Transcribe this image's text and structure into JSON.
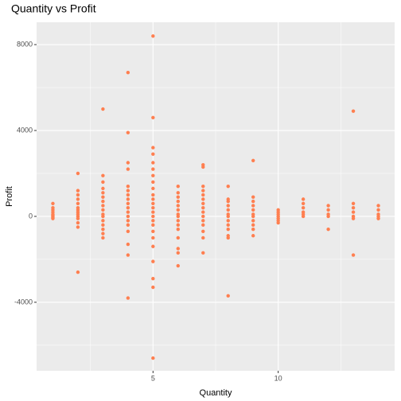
{
  "chart_data": {
    "type": "scatter",
    "title": "Quantity vs Profit",
    "x_label": "Quantity",
    "y_label": "Profit",
    "color": "#ff7f50",
    "grid": true,
    "xlim": [
      0.35,
      14.65
    ],
    "ylim": [
      -7190,
      9040
    ],
    "xticks": [
      5,
      10
    ],
    "yticks": [
      -4000,
      0,
      4000,
      8000
    ],
    "x_minor_ticks": [
      2.5,
      7.5,
      12.5
    ],
    "y_minor_ticks": [
      -6000,
      -2000,
      2000,
      6000
    ],
    "x": [
      1,
      1,
      1,
      1,
      1,
      1,
      1,
      1,
      1,
      2,
      2,
      2,
      2,
      2,
      2,
      2,
      2,
      2,
      2,
      2,
      2,
      2,
      2,
      3,
      3,
      3,
      3,
      3,
      3,
      3,
      3,
      3,
      3,
      3,
      3,
      3,
      3,
      3,
      3,
      4,
      4,
      4,
      4,
      4,
      4,
      4,
      4,
      4,
      4,
      4,
      4,
      4,
      4,
      4,
      4,
      4,
      4,
      5,
      5,
      5,
      5,
      5,
      5,
      5,
      5,
      5,
      5,
      5,
      5,
      5,
      5,
      5,
      5,
      5,
      5,
      5,
      5,
      5,
      5,
      5,
      5,
      6,
      6,
      6,
      6,
      6,
      6,
      6,
      6,
      6,
      6,
      6,
      6,
      6,
      6,
      6,
      7,
      7,
      7,
      7,
      7,
      7,
      7,
      7,
      7,
      7,
      7,
      7,
      7,
      7,
      7,
      8,
      8,
      8,
      8,
      8,
      8,
      8,
      8,
      8,
      8,
      8,
      8,
      8,
      9,
      9,
      9,
      9,
      9,
      9,
      9,
      9,
      9,
      9,
      9,
      10,
      10,
      10,
      10,
      10,
      10,
      10,
      11,
      11,
      11,
      11,
      11,
      11,
      12,
      12,
      12,
      12,
      12,
      13,
      13,
      13,
      13,
      13,
      13,
      13,
      14,
      14,
      14,
      14,
      14
    ],
    "values": [
      600,
      400,
      300,
      200,
      100,
      50,
      0,
      -50,
      -100,
      2000,
      1200,
      1000,
      800,
      600,
      400,
      300,
      200,
      100,
      0,
      -100,
      -300,
      -500,
      -2600,
      5000,
      1900,
      1600,
      1300,
      1100,
      900,
      700,
      500,
      300,
      100,
      0,
      -200,
      -400,
      -600,
      -800,
      -1000,
      6700,
      3900,
      2500,
      2200,
      1400,
      1200,
      1000,
      800,
      600,
      400,
      200,
      0,
      -200,
      -400,
      -700,
      -1300,
      -1800,
      -3800,
      8400,
      4600,
      3200,
      2900,
      2500,
      2200,
      1900,
      1600,
      1300,
      1000,
      800,
      600,
      400,
      200,
      0,
      -200,
      -400,
      -700,
      -1000,
      -1400,
      -2100,
      -2900,
      -3300,
      -6600,
      1400,
      1100,
      900,
      700,
      500,
      300,
      100,
      0,
      -200,
      -400,
      -600,
      -1000,
      -1500,
      -1700,
      -2300,
      2400,
      2300,
      1400,
      1200,
      1000,
      800,
      600,
      400,
      200,
      0,
      -200,
      -400,
      -700,
      -1000,
      -1700,
      1400,
      800,
      700,
      500,
      300,
      100,
      0,
      -200,
      -400,
      -600,
      -900,
      -1000,
      -3700,
      2600,
      900,
      700,
      500,
      300,
      100,
      0,
      -200,
      -400,
      -600,
      -900,
      300,
      200,
      100,
      0,
      -100,
      -200,
      -300,
      800,
      600,
      400,
      200,
      100,
      0,
      500,
      300,
      100,
      0,
      -600,
      4900,
      600,
      400,
      200,
      0,
      -100,
      -1800,
      500,
      300,
      100,
      0,
      -100
    ]
  }
}
